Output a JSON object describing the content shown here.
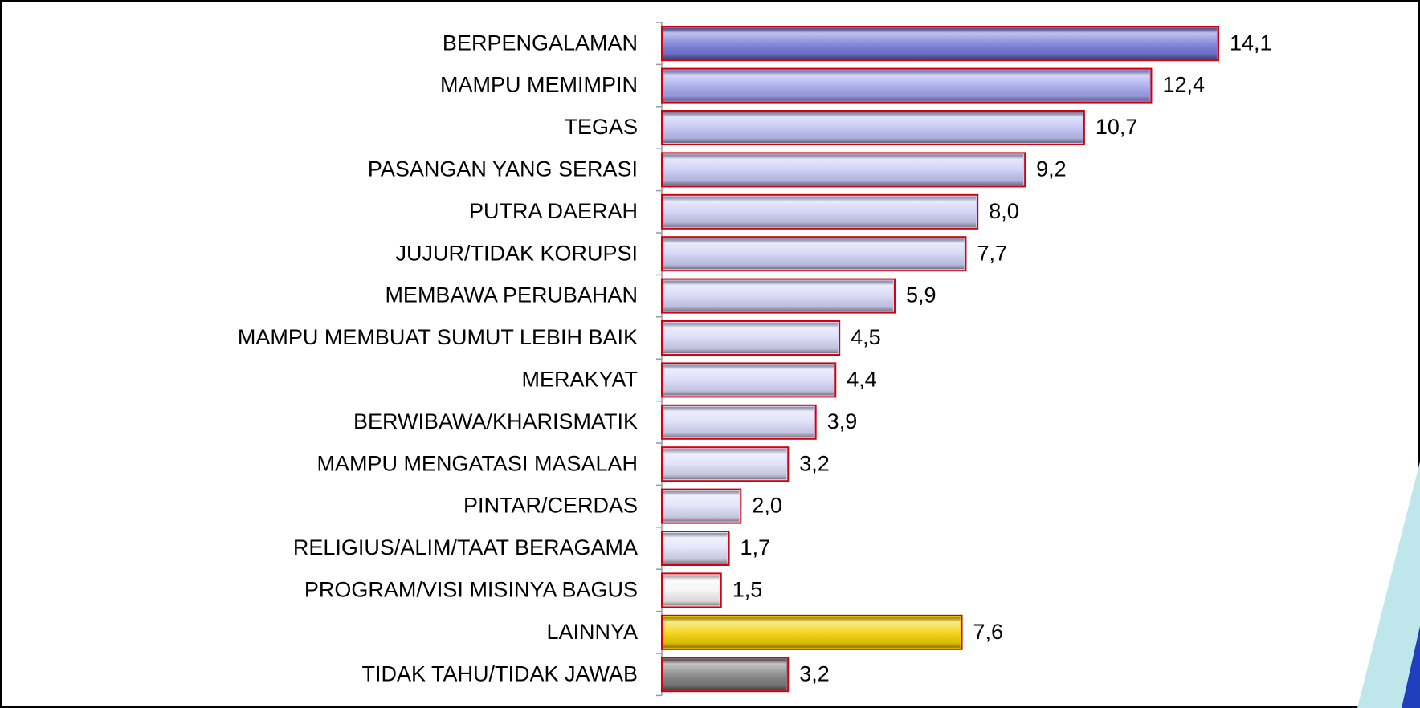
{
  "chart_data": {
    "type": "bar",
    "orientation": "horizontal",
    "categories": [
      "BERPENGALAMAN",
      "MAMPU MEMIMPIN",
      "TEGAS",
      "PASANGAN YANG SERASI",
      "PUTRA DAERAH",
      "JUJUR/TIDAK KORUPSI",
      "MEMBAWA PERUBAHAN",
      "MAMPU MEMBUAT SUMUT LEBIH BAIK",
      "MERAKYAT",
      "BERWIBAWA/KHARISMATIK",
      "MAMPU MENGATASI MASALAH",
      "PINTAR/CERDAS",
      "RELIGIUS/ALIM/TAAT BERAGAMA",
      "PROGRAM/VISI MISINYA BAGUS",
      "LAINNYA",
      "TIDAK TAHU/TIDAK JAWAB"
    ],
    "values": [
      14.1,
      12.4,
      10.7,
      9.2,
      8.0,
      7.7,
      5.9,
      4.5,
      4.4,
      3.9,
      3.2,
      2.0,
      1.7,
      1.5,
      7.6,
      3.2
    ],
    "value_labels": [
      "14,1",
      "12,4",
      "10,7",
      "9,2",
      "8,0",
      "7,7",
      "5,9",
      "4,5",
      "4,4",
      "3,9",
      "3,2",
      "2,0",
      "1,7",
      "1,5",
      "7,6",
      "3,2"
    ],
    "colors": [
      "#7478d8",
      "#a3a6ee",
      "#bfc1f3",
      "#c9caf5",
      "#cdcef6",
      "#d0d1f6",
      "#d3d4f7",
      "#d6d7f7",
      "#d8d9f8",
      "#dadbf8",
      "#dcddf8",
      "#dedff9",
      "#e0e1f9",
      "#f4f4f4",
      "#f5d000",
      "#7f7f7f"
    ],
    "edge_color": "#d4000f"
  }
}
